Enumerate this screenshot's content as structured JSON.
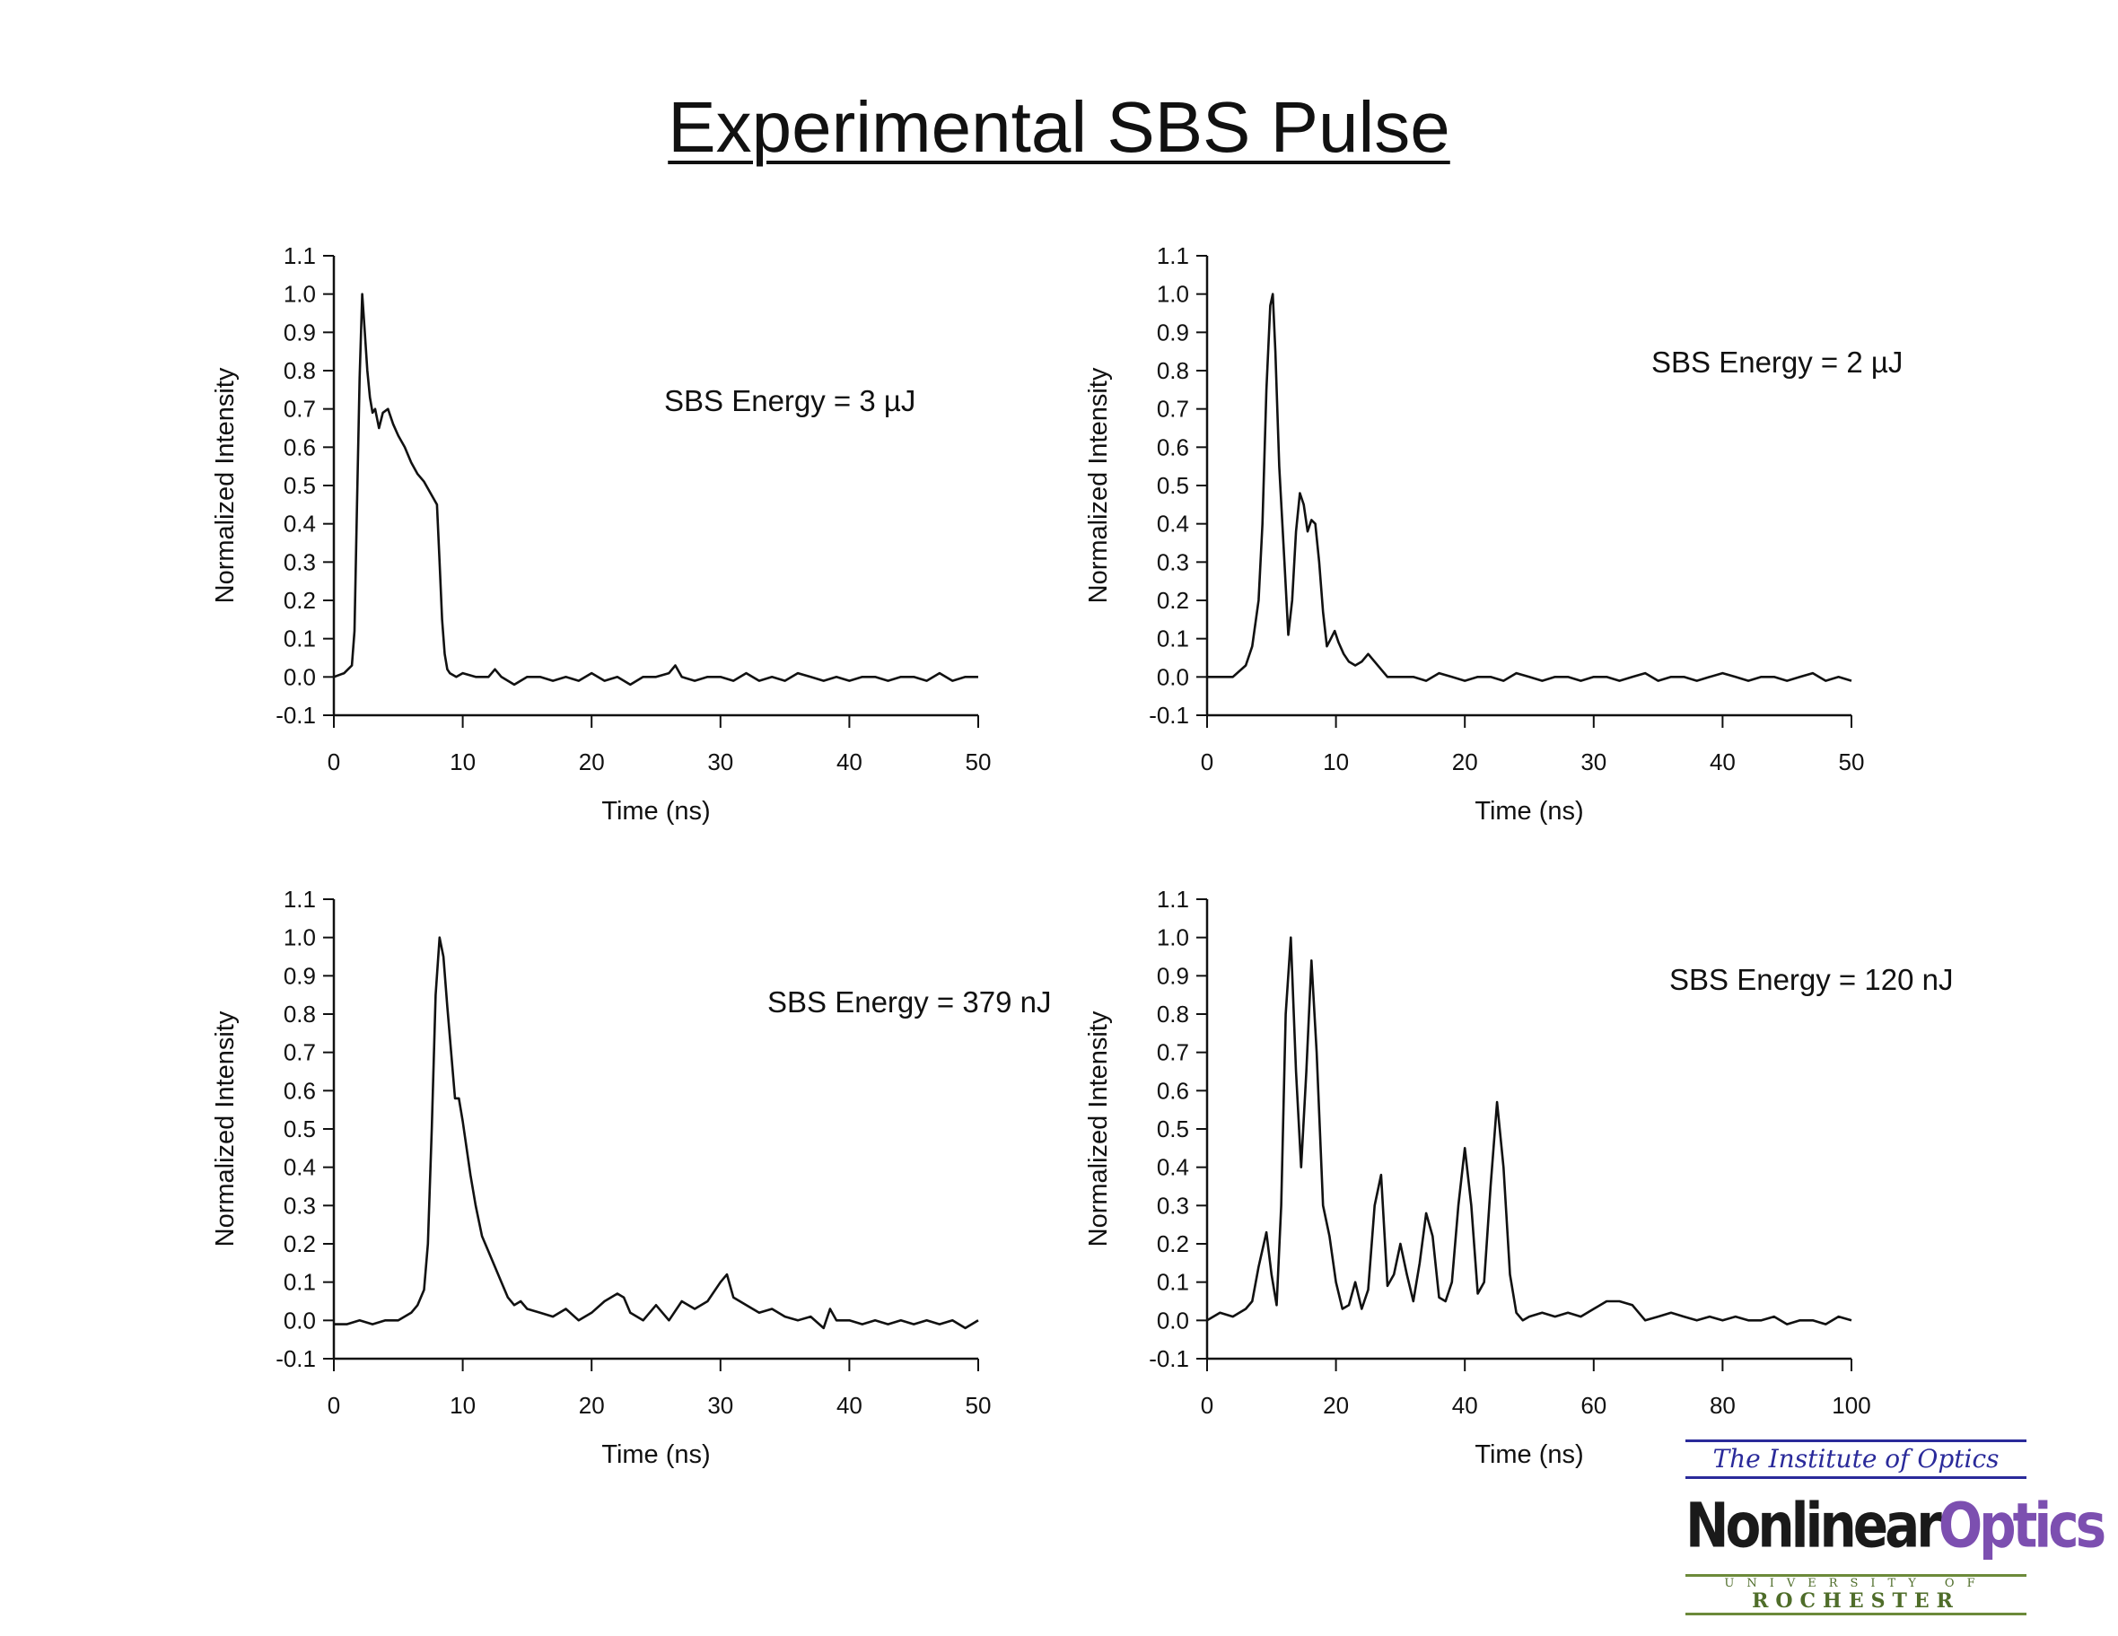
{
  "title": "Experimental SBS Pulse",
  "logo": {
    "line1": "The Institute of Optics",
    "line2a": "Nonlinear",
    "line2b": "Optics",
    "line3": "UNIVERSITY OF",
    "line4": "ROCHESTER"
  },
  "chart_data": [
    {
      "type": "line",
      "xlabel": "Time (ns)",
      "ylabel": "Normalized Intensity",
      "annotation": "SBS Energy = 3 µJ",
      "xlim": [
        0,
        50
      ],
      "ylim": [
        -0.1,
        1.1
      ],
      "xticks": [
        0,
        10,
        20,
        30,
        40,
        50
      ],
      "yticks": [
        -0.1,
        0.0,
        0.1,
        0.2,
        0.3,
        0.4,
        0.5,
        0.6,
        0.7,
        0.8,
        0.9,
        1.0,
        1.1
      ],
      "x": [
        0,
        0.8,
        1.4,
        1.6,
        1.8,
        2.0,
        2.2,
        2.4,
        2.6,
        2.8,
        3.0,
        3.2,
        3.5,
        3.8,
        4.2,
        4.6,
        5.0,
        5.5,
        6.0,
        6.5,
        7.0,
        7.5,
        8.0,
        8.2,
        8.4,
        8.6,
        8.8,
        9.0,
        9.5,
        10,
        11,
        12,
        12.5,
        13,
        14,
        15,
        16,
        17,
        18,
        19,
        20,
        21,
        22,
        23,
        24,
        25,
        26,
        26.5,
        27,
        28,
        29,
        30,
        31,
        32,
        33,
        34,
        35,
        36,
        37,
        38,
        39,
        40,
        41,
        42,
        43,
        44,
        45,
        46,
        47,
        48,
        49,
        50
      ],
      "y": [
        0.0,
        0.01,
        0.03,
        0.12,
        0.45,
        0.78,
        1.0,
        0.9,
        0.8,
        0.73,
        0.69,
        0.7,
        0.65,
        0.69,
        0.7,
        0.66,
        0.63,
        0.6,
        0.56,
        0.53,
        0.51,
        0.48,
        0.45,
        0.3,
        0.15,
        0.06,
        0.02,
        0.01,
        0.0,
        0.01,
        0.0,
        0.0,
        0.02,
        0.0,
        -0.02,
        0.0,
        0.0,
        -0.01,
        0.0,
        -0.01,
        0.01,
        -0.01,
        0.0,
        -0.02,
        0.0,
        0.0,
        0.01,
        0.03,
        0.0,
        -0.01,
        0.0,
        0.0,
        -0.01,
        0.01,
        -0.01,
        0.0,
        -0.01,
        0.01,
        0.0,
        -0.01,
        0.0,
        -0.01,
        0.0,
        0.0,
        -0.01,
        0.0,
        0.0,
        -0.01,
        0.01,
        -0.01,
        0.0,
        0.0
      ]
    },
    {
      "type": "line",
      "xlabel": "Time (ns)",
      "ylabel": "Normalized Intensity",
      "annotation": "SBS Energy = 2 µJ",
      "xlim": [
        0,
        50
      ],
      "ylim": [
        -0.1,
        1.1
      ],
      "xticks": [
        0,
        10,
        20,
        30,
        40,
        50
      ],
      "yticks": [
        -0.1,
        0.0,
        0.1,
        0.2,
        0.3,
        0.4,
        0.5,
        0.6,
        0.7,
        0.8,
        0.9,
        1.0,
        1.1
      ],
      "x": [
        0,
        1,
        2,
        3,
        3.5,
        4.0,
        4.3,
        4.6,
        4.9,
        5.1,
        5.3,
        5.6,
        6.0,
        6.3,
        6.6,
        6.9,
        7.2,
        7.5,
        7.8,
        8.1,
        8.4,
        8.7,
        9.0,
        9.3,
        9.6,
        9.9,
        10.2,
        10.6,
        11,
        11.5,
        12,
        12.5,
        13,
        14,
        15,
        16,
        17,
        18,
        19,
        20,
        21,
        22,
        23,
        24,
        25,
        26,
        27,
        28,
        29,
        30,
        31,
        32,
        33,
        34,
        35,
        36,
        37,
        38,
        39,
        40,
        41,
        42,
        43,
        44,
        45,
        46,
        47,
        48,
        49,
        50
      ],
      "y": [
        0.0,
        0.0,
        0.0,
        0.03,
        0.08,
        0.2,
        0.4,
        0.75,
        0.97,
        1.0,
        0.85,
        0.55,
        0.3,
        0.11,
        0.2,
        0.38,
        0.48,
        0.45,
        0.38,
        0.41,
        0.4,
        0.3,
        0.17,
        0.08,
        0.1,
        0.12,
        0.09,
        0.06,
        0.04,
        0.03,
        0.04,
        0.06,
        0.04,
        0.0,
        0.0,
        0.0,
        -0.01,
        0.01,
        0.0,
        -0.01,
        0.0,
        0.0,
        -0.01,
        0.01,
        0.0,
        -0.01,
        0.0,
        0.0,
        -0.01,
        0.0,
        0.0,
        -0.01,
        0.0,
        0.01,
        -0.01,
        0.0,
        0.0,
        -0.01,
        0.0,
        0.01,
        0.0,
        -0.01,
        0.0,
        0.0,
        -0.01,
        0.0,
        0.01,
        -0.01,
        0.0,
        -0.01
      ]
    },
    {
      "type": "line",
      "xlabel": "Time (ns)",
      "ylabel": "Normalized Intensity",
      "annotation": "SBS Energy = 379 nJ",
      "xlim": [
        0,
        50
      ],
      "ylim": [
        -0.1,
        1.1
      ],
      "xticks": [
        0,
        10,
        20,
        30,
        40,
        50
      ],
      "yticks": [
        -0.1,
        0.0,
        0.1,
        0.2,
        0.3,
        0.4,
        0.5,
        0.6,
        0.7,
        0.8,
        0.9,
        1.0,
        1.1
      ],
      "x": [
        0,
        1,
        2,
        3,
        4,
        5,
        6,
        6.5,
        7.0,
        7.3,
        7.6,
        7.9,
        8.2,
        8.5,
        8.8,
        9.1,
        9.4,
        9.7,
        10.0,
        10.3,
        10.6,
        11.0,
        11.5,
        12.0,
        12.5,
        13.0,
        13.5,
        14,
        14.5,
        15,
        16,
        17,
        18,
        19,
        20,
        21,
        22,
        22.5,
        23,
        24,
        25,
        26,
        27,
        28,
        29,
        30,
        30.5,
        31,
        32,
        33,
        34,
        35,
        36,
        37,
        38,
        38.5,
        39,
        40,
        41,
        42,
        43,
        44,
        45,
        46,
        47,
        48,
        49,
        50
      ],
      "y": [
        -0.01,
        -0.01,
        0.0,
        -0.01,
        0.0,
        0.0,
        0.02,
        0.04,
        0.08,
        0.2,
        0.5,
        0.85,
        1.0,
        0.95,
        0.82,
        0.7,
        0.58,
        0.58,
        0.52,
        0.45,
        0.38,
        0.3,
        0.22,
        0.18,
        0.14,
        0.1,
        0.06,
        0.04,
        0.05,
        0.03,
        0.02,
        0.01,
        0.03,
        0.0,
        0.02,
        0.05,
        0.07,
        0.06,
        0.02,
        0.0,
        0.04,
        0.0,
        0.05,
        0.03,
        0.05,
        0.1,
        0.12,
        0.06,
        0.04,
        0.02,
        0.03,
        0.01,
        0.0,
        0.01,
        -0.02,
        0.03,
        0.0,
        0.0,
        -0.01,
        0.0,
        -0.01,
        0.0,
        -0.01,
        0.0,
        -0.01,
        0.0,
        -0.02,
        0.0
      ]
    },
    {
      "type": "line",
      "xlabel": "Time (ns)",
      "ylabel": "Normalized Intensity",
      "annotation": "SBS Energy = 120 nJ",
      "xlim": [
        0,
        100
      ],
      "ylim": [
        -0.1,
        1.1
      ],
      "xticks": [
        0,
        20,
        40,
        60,
        80,
        100
      ],
      "yticks": [
        -0.1,
        0.0,
        0.1,
        0.2,
        0.3,
        0.4,
        0.5,
        0.6,
        0.7,
        0.8,
        0.9,
        1.0,
        1.1
      ],
      "x": [
        0,
        2,
        4,
        6,
        7,
        8,
        9.2,
        10,
        10.8,
        11.5,
        12.2,
        13,
        13.8,
        14.6,
        15.4,
        16.2,
        17,
        18,
        19,
        20,
        21,
        22,
        23,
        24,
        25,
        26,
        27,
        28,
        29,
        30,
        31,
        32,
        33,
        34,
        35,
        36,
        37,
        38,
        39,
        40,
        41,
        42,
        43,
        44,
        45,
        46,
        47,
        48,
        49,
        50,
        52,
        54,
        56,
        58,
        60,
        62,
        64,
        66,
        68,
        70,
        72,
        74,
        76,
        78,
        80,
        82,
        84,
        86,
        88,
        90,
        92,
        94,
        96,
        98,
        100
      ],
      "y": [
        0.0,
        0.02,
        0.01,
        0.03,
        0.05,
        0.14,
        0.23,
        0.12,
        0.04,
        0.3,
        0.8,
        1.0,
        0.65,
        0.4,
        0.65,
        0.94,
        0.7,
        0.3,
        0.22,
        0.1,
        0.03,
        0.04,
        0.1,
        0.03,
        0.08,
        0.3,
        0.38,
        0.09,
        0.12,
        0.2,
        0.12,
        0.05,
        0.15,
        0.28,
        0.22,
        0.06,
        0.05,
        0.1,
        0.3,
        0.45,
        0.3,
        0.07,
        0.1,
        0.35,
        0.57,
        0.4,
        0.12,
        0.02,
        0.0,
        0.01,
        0.02,
        0.01,
        0.02,
        0.01,
        0.03,
        0.05,
        0.05,
        0.04,
        0.0,
        0.01,
        0.02,
        0.01,
        0.0,
        0.01,
        0.0,
        0.01,
        0.0,
        0.0,
        0.01,
        -0.01,
        0.0,
        0.0,
        -0.01,
        0.01,
        0.0
      ]
    }
  ]
}
